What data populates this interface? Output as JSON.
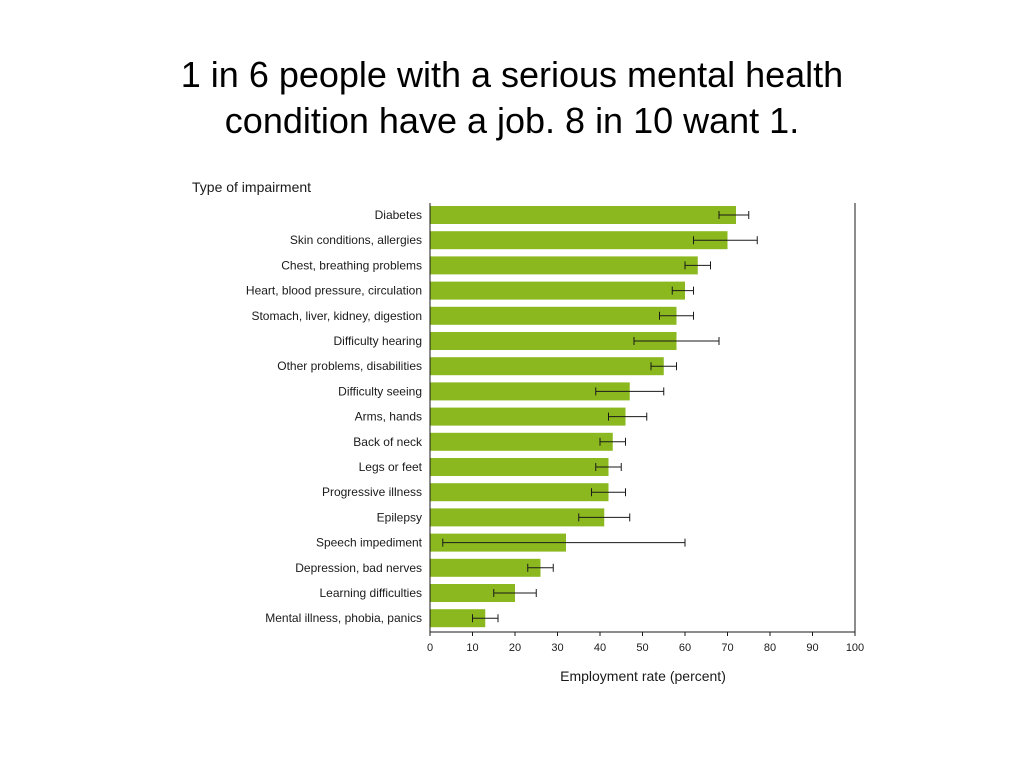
{
  "slide": {
    "title_line1": "1 in 6 people with a serious mental health",
    "title_line2": "condition have a job. 8 in 10 want 1."
  },
  "chart_data": {
    "type": "bar",
    "orientation": "horizontal",
    "category_axis_title": "Type of impairment",
    "xlabel": "Employment rate (percent)",
    "xlim": [
      0,
      100
    ],
    "xticks": [
      0,
      10,
      20,
      30,
      40,
      50,
      60,
      70,
      80,
      90,
      100
    ],
    "bar_color": "#8ab81e",
    "grid": false,
    "categories": [
      "Diabetes",
      "Skin conditions, allergies",
      "Chest, breathing problems",
      "Heart, blood pressure, circulation",
      "Stomach, liver, kidney, digestion",
      "Difficulty hearing",
      "Other problems, disabilities",
      "Difficulty seeing",
      "Arms, hands",
      "Back of neck",
      "Legs or feet",
      "Progressive illness",
      "Epilepsy",
      "Speech impediment",
      "Depression, bad nerves",
      "Learning difficulties",
      "Mental illness, phobia, panics"
    ],
    "values": [
      72,
      70,
      63,
      60,
      58,
      58,
      55,
      47,
      46,
      43,
      42,
      42,
      41,
      32,
      26,
      20,
      13
    ],
    "error_low": [
      68,
      62,
      60,
      57,
      54,
      48,
      52,
      39,
      42,
      40,
      39,
      38,
      35,
      3,
      23,
      15,
      10
    ],
    "error_high": [
      75,
      77,
      66,
      62,
      62,
      68,
      58,
      55,
      51,
      46,
      45,
      46,
      47,
      60,
      29,
      25,
      16
    ]
  }
}
